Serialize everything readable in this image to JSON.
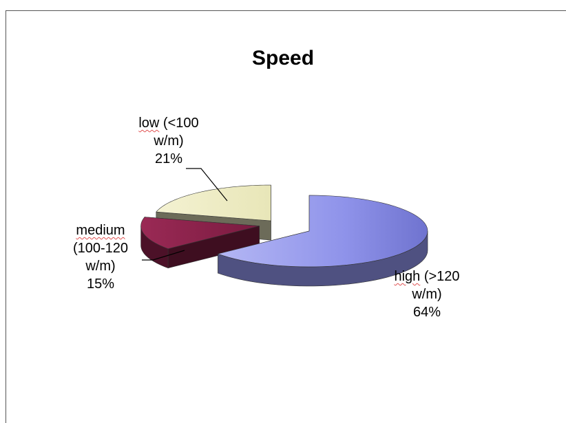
{
  "chart_data": {
    "type": "pie",
    "title": "Speed",
    "three_d": true,
    "exploded": true,
    "legend": "none",
    "slices": [
      {
        "label_line1": "low",
        "label_line1_rest": " (<100",
        "label_line2": "w/m)",
        "label_line3": "",
        "percent_label": "21%",
        "value": 21,
        "color": "#f0eec6"
      },
      {
        "label_line1": "medium",
        "label_line1_rest": "",
        "label_line2": "(100-120",
        "label_line3": "w/m)",
        "percent_label": "15%",
        "value": 15,
        "color": "#8a1f48"
      },
      {
        "label_line1": "high",
        "label_line1_rest": " (>120",
        "label_line2": "w/m)",
        "label_line3": "",
        "percent_label": "64%",
        "value": 64,
        "color": "#8f93ea"
      }
    ]
  }
}
